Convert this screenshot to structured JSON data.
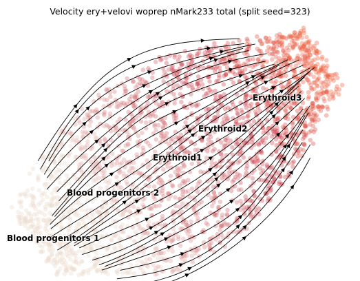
{
  "title": "Velocity ery+velovi woprep nMark233 total (split seed=323)",
  "plot": {
    "colors": {
      "early": "#ebd9cc",
      "mid": "#c93c4a",
      "late": "#f0603a",
      "arrows": "#000000"
    }
  },
  "clusters": [
    {
      "label": "Blood progenitors 1"
    },
    {
      "label": "Blood progenitors 2"
    },
    {
      "label": "Erythroid1"
    },
    {
      "label": "Erythroid2"
    },
    {
      "label": "Erythroid3"
    }
  ]
}
